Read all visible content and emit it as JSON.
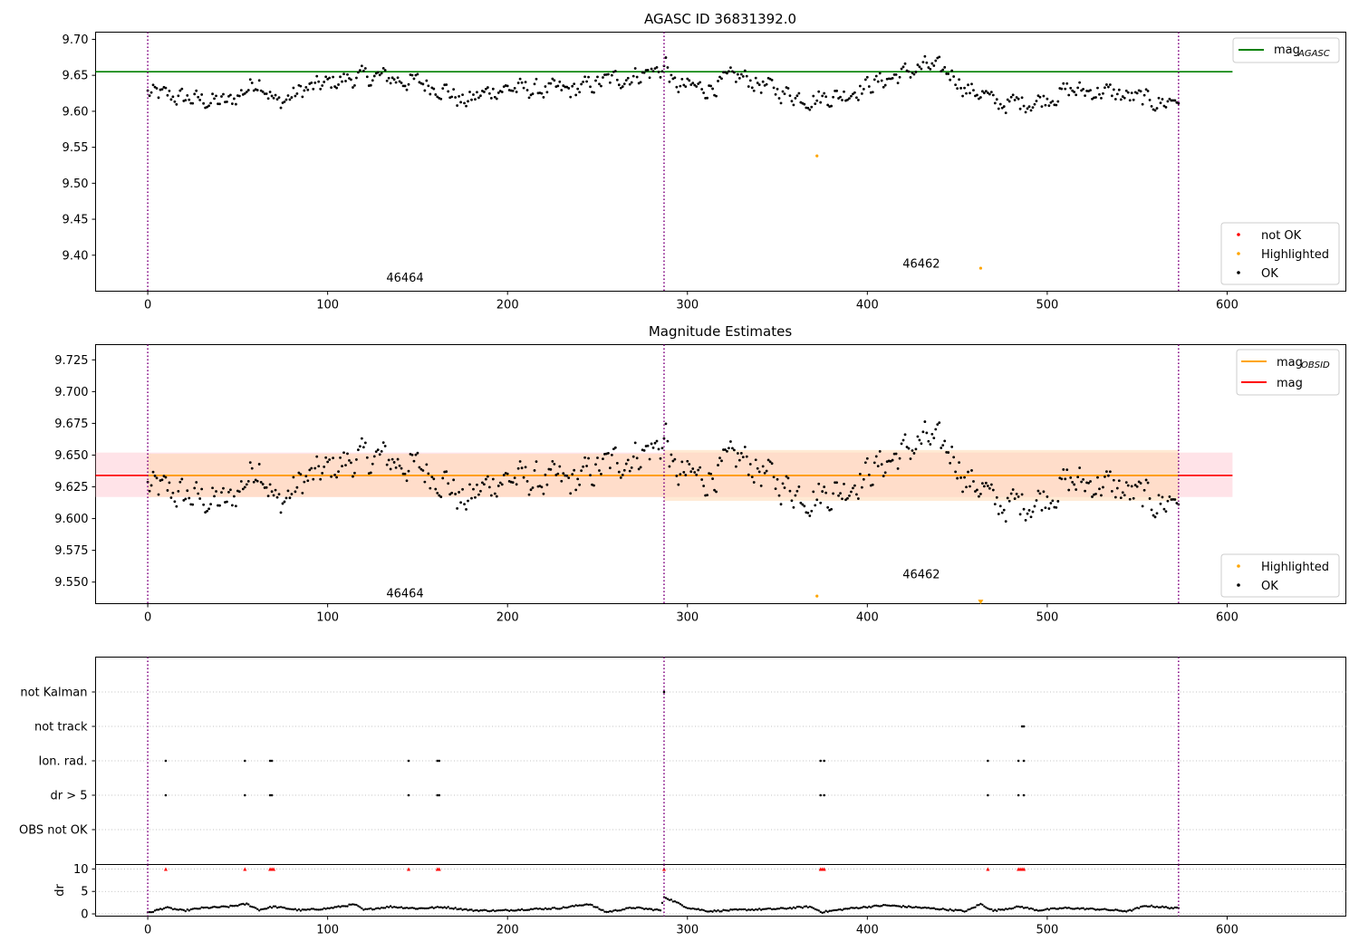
{
  "chart_data": [
    {
      "type": "scatter",
      "title": "AGASC ID 36831392.0",
      "xlim": [
        -29,
        666
      ],
      "ylim": [
        9.35,
        9.71
      ],
      "x_ticks": [
        0,
        100,
        200,
        300,
        400,
        500,
        600
      ],
      "y_ticks": [
        9.4,
        9.45,
        9.5,
        9.55,
        9.6,
        9.65,
        9.7
      ],
      "y_tick_labels": [
        "9.40",
        "9.45",
        "9.50",
        "9.55",
        "9.60",
        "9.65",
        "9.70"
      ],
      "obs_boundaries": [
        0,
        287,
        573
      ],
      "hlines": [
        {
          "name": "mag_AGASC",
          "y": 9.655,
          "x_range": [
            -29,
            603
          ],
          "color": "#008000"
        }
      ],
      "annotations": [
        {
          "text": "46464",
          "x": 143,
          "y": 9.368
        },
        {
          "text": "46462",
          "x": 430,
          "y": 9.388
        }
      ],
      "highlighted_points": [
        {
          "x": 372,
          "y": 9.538
        },
        {
          "x": 463,
          "y": 9.382
        }
      ],
      "legend": {
        "position": "top-right",
        "lines": [
          {
            "label": "mag",
            "sub": "AGASC",
            "color": "#008000"
          }
        ]
      },
      "legend2": {
        "position": "bottom-right",
        "entries": [
          {
            "label": "not OK",
            "color": "#ff0000"
          },
          {
            "label": "Highlighted",
            "color": "#ffa500"
          },
          {
            "label": "OK",
            "color": "#000000"
          }
        ]
      },
      "ok_series_trend": [
        [
          0,
          9.625
        ],
        [
          20,
          9.618
        ],
        [
          45,
          9.612
        ],
        [
          62,
          9.645
        ],
        [
          72,
          9.61
        ],
        [
          85,
          9.628
        ],
        [
          110,
          9.645
        ],
        [
          130,
          9.648
        ],
        [
          150,
          9.64
        ],
        [
          165,
          9.632
        ],
        [
          175,
          9.612
        ],
        [
          195,
          9.632
        ],
        [
          215,
          9.63
        ],
        [
          235,
          9.628
        ],
        [
          255,
          9.642
        ],
        [
          270,
          9.65
        ],
        [
          286,
          9.658
        ],
        [
          288,
          9.668
        ],
        [
          292,
          9.635
        ],
        [
          310,
          9.632
        ],
        [
          330,
          9.648
        ],
        [
          350,
          9.628
        ],
        [
          368,
          9.618
        ],
        [
          385,
          9.622
        ],
        [
          395,
          9.632
        ],
        [
          415,
          9.648
        ],
        [
          432,
          9.662
        ],
        [
          448,
          9.652
        ],
        [
          455,
          9.63
        ],
        [
          465,
          9.625
        ],
        [
          470,
          9.61
        ],
        [
          485,
          9.612
        ],
        [
          495,
          9.615
        ],
        [
          510,
          9.628
        ],
        [
          530,
          9.628
        ],
        [
          548,
          9.618
        ],
        [
          565,
          9.612
        ],
        [
          573,
          9.62
        ]
      ],
      "ok_series_scatter": 0.012
    },
    {
      "type": "scatter",
      "title": "Magnitude Estimates",
      "xlim": [
        -29,
        666
      ],
      "ylim": [
        9.533,
        9.737
      ],
      "x_ticks": [
        0,
        100,
        200,
        300,
        400,
        500,
        600
      ],
      "y_ticks": [
        9.55,
        9.575,
        9.6,
        9.625,
        9.65,
        9.675,
        9.7,
        9.725
      ],
      "y_tick_labels": [
        "9.550",
        "9.575",
        "9.600",
        "9.625",
        "9.650",
        "9.675",
        "9.700",
        "9.725"
      ],
      "obs_boundaries": [
        0,
        287,
        573
      ],
      "hlines": [
        {
          "name": "mag",
          "y": 9.634,
          "x_range": [
            -29,
            603
          ],
          "color": "#ff0000"
        },
        {
          "name": "mag_OBSID_46464",
          "y": 9.634,
          "x_range": [
            0,
            287
          ],
          "color": "#ffa500"
        },
        {
          "name": "mag_OBSID_46462",
          "y": 9.634,
          "x_range": [
            287,
            573
          ],
          "color": "#ffa500"
        }
      ],
      "bands": [
        {
          "name": "mag",
          "y_low": 9.617,
          "y_high": 9.652,
          "x_range": [
            -29,
            603
          ],
          "color": "#ffc0cb"
        },
        {
          "name": "mag_OBSID_46464",
          "y_low": 9.617,
          "y_high": 9.651,
          "x_range": [
            0,
            287
          ],
          "color": "#ffd8b0"
        },
        {
          "name": "mag_OBSID_46462",
          "y_low": 9.614,
          "y_high": 9.654,
          "x_range": [
            287,
            573
          ],
          "color": "#ffd8b0"
        }
      ],
      "annotations": [
        {
          "text": "46464",
          "x": 143,
          "y": 9.541
        },
        {
          "text": "46462",
          "x": 430,
          "y": 9.556
        }
      ],
      "highlighted_points": [
        {
          "x": 372,
          "y": 9.539
        },
        {
          "x": 463,
          "y": 9.534
        }
      ],
      "legend": {
        "position": "top-right",
        "lines": [
          {
            "label": "mag",
            "sub": "OBSID",
            "color": "#ffa500"
          },
          {
            "label": "mag",
            "sub": "",
            "color": "#ff0000"
          }
        ]
      },
      "legend2": {
        "position": "bottom-right",
        "entries": [
          {
            "label": "Highlighted",
            "color": "#ffa500"
          },
          {
            "label": "OK",
            "color": "#000000"
          }
        ]
      }
    },
    {
      "type": "scatter",
      "title": "",
      "categories": [
        "OBS not OK",
        "dr > 5",
        "Ion. rad.",
        "not track",
        "not Kalman"
      ],
      "flag_points": {
        "not Kalman": [
          287
        ],
        "not track": [
          486,
          487
        ],
        "Ion. rad.": [
          10,
          54,
          68,
          69,
          145,
          161,
          162,
          374,
          376,
          467,
          484,
          487
        ],
        "dr > 5": [
          10,
          54,
          68,
          69,
          145,
          161,
          162,
          374,
          376,
          467,
          484,
          487
        ],
        "OBS not OK": []
      },
      "obs_boundaries": [
        0,
        287,
        573
      ]
    },
    {
      "type": "scatter",
      "title": "",
      "xlabel": "",
      "ylabel": "dr",
      "xlim": [
        -29,
        666
      ],
      "ylim": [
        -0.5,
        11
      ],
      "x_ticks": [
        0,
        100,
        200,
        300,
        400,
        500,
        600
      ],
      "y_ticks": [
        0,
        5,
        10
      ],
      "y_tick_labels": [
        "0",
        "5",
        "10"
      ],
      "obs_boundaries": [
        0,
        287,
        573
      ],
      "clipped_markers_at_10": [
        10,
        54,
        68,
        69,
        70,
        145,
        161,
        162,
        287,
        374,
        375,
        376,
        467,
        484,
        485,
        486,
        487
      ],
      "dr_trend": [
        [
          0,
          0.2
        ],
        [
          10,
          1.4
        ],
        [
          20,
          0.7
        ],
        [
          30,
          1.3
        ],
        [
          45,
          1.6
        ],
        [
          55,
          2.2
        ],
        [
          62,
          0.9
        ],
        [
          70,
          1.6
        ],
        [
          85,
          0.8
        ],
        [
          100,
          1.2
        ],
        [
          115,
          2.1
        ],
        [
          120,
          0.9
        ],
        [
          135,
          1.6
        ],
        [
          150,
          1.2
        ],
        [
          165,
          1.5
        ],
        [
          180,
          0.8
        ],
        [
          195,
          0.7
        ],
        [
          210,
          1.0
        ],
        [
          230,
          1.3
        ],
        [
          245,
          2.2
        ],
        [
          255,
          0.4
        ],
        [
          270,
          1.4
        ],
        [
          285,
          0.8
        ],
        [
          287,
          3.8
        ],
        [
          300,
          1.4
        ],
        [
          312,
          0.6
        ],
        [
          330,
          0.9
        ],
        [
          350,
          1.1
        ],
        [
          368,
          1.6
        ],
        [
          375,
          0.4
        ],
        [
          390,
          1.2
        ],
        [
          410,
          1.9
        ],
        [
          425,
          1.5
        ],
        [
          440,
          1.1
        ],
        [
          455,
          0.6
        ],
        [
          463,
          2.2
        ],
        [
          470,
          0.7
        ],
        [
          485,
          1.6
        ],
        [
          495,
          0.8
        ],
        [
          510,
          1.3
        ],
        [
          530,
          1.0
        ],
        [
          545,
          0.6
        ],
        [
          555,
          1.8
        ],
        [
          573,
          1.2
        ]
      ]
    }
  ]
}
